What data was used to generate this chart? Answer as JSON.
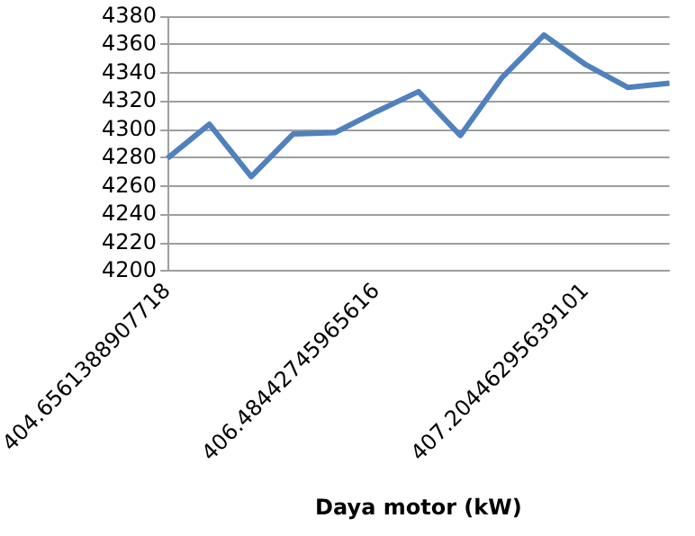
{
  "chart_data": {
    "type": "line",
    "xlabel": "Daya motor (kW)",
    "categories": [
      "404.6561388907718",
      null,
      null,
      null,
      null,
      "406.48442745965616",
      null,
      null,
      null,
      null,
      "407.20446295639101",
      null,
      null
    ],
    "series": [
      {
        "color": "#4f81bd",
        "values": [
          4280,
          4304,
          4267,
          4297,
          4298,
          4313,
          4327,
          4296,
          4337,
          4367,
          4346,
          4330,
          4333
        ]
      }
    ],
    "ylim": [
      4200,
      4380
    ],
    "yticks": [
      4200,
      4220,
      4240,
      4260,
      4280,
      4300,
      4320,
      4340,
      4360,
      4380
    ],
    "grid": "y",
    "legend": false,
    "marker": "none",
    "line_style": "solid"
  }
}
